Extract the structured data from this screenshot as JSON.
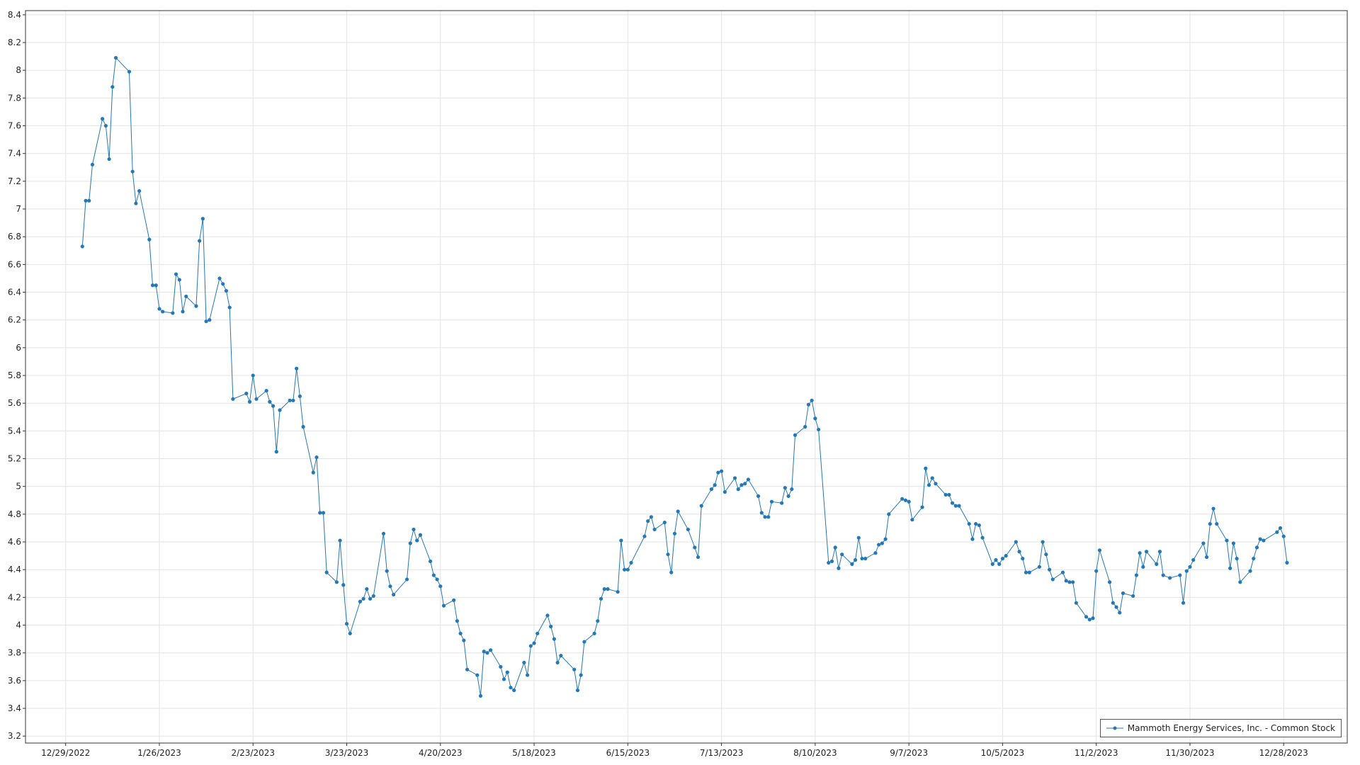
{
  "chart_data": {
    "type": "line",
    "x": [
      "1/3/2023",
      "1/4/2023",
      "1/5/2023",
      "1/6/2023",
      "1/9/2023",
      "1/10/2023",
      "1/11/2023",
      "1/12/2023",
      "1/13/2023",
      "1/17/2023",
      "1/18/2023",
      "1/19/2023",
      "1/20/2023",
      "1/23/2023",
      "1/24/2023",
      "1/25/2023",
      "1/26/2023",
      "1/27/2023",
      "1/30/2023",
      "1/31/2023",
      "2/1/2023",
      "2/2/2023",
      "2/3/2023",
      "2/6/2023",
      "2/7/2023",
      "2/8/2023",
      "2/9/2023",
      "2/10/2023",
      "2/13/2023",
      "2/14/2023",
      "2/15/2023",
      "2/16/2023",
      "2/17/2023",
      "2/21/2023",
      "2/22/2023",
      "2/23/2023",
      "2/24/2023",
      "2/27/2023",
      "2/28/2023",
      "3/1/2023",
      "3/2/2023",
      "3/3/2023",
      "3/6/2023",
      "3/7/2023",
      "3/8/2023",
      "3/9/2023",
      "3/10/2023",
      "3/13/2023",
      "3/14/2023",
      "3/15/2023",
      "3/16/2023",
      "3/17/2023",
      "3/20/2023",
      "3/21/2023",
      "3/22/2023",
      "3/23/2023",
      "3/24/2023",
      "3/27/2023",
      "3/28/2023",
      "3/29/2023",
      "3/30/2023",
      "3/31/2023",
      "4/3/2023",
      "4/4/2023",
      "4/5/2023",
      "4/6/2023",
      "4/10/2023",
      "4/11/2023",
      "4/12/2023",
      "4/13/2023",
      "4/14/2023",
      "4/17/2023",
      "4/18/2023",
      "4/19/2023",
      "4/20/2023",
      "4/21/2023",
      "4/24/2023",
      "4/25/2023",
      "4/26/2023",
      "4/27/2023",
      "4/28/2023",
      "5/1/2023",
      "5/2/2023",
      "5/3/2023",
      "5/4/2023",
      "5/5/2023",
      "5/8/2023",
      "5/9/2023",
      "5/10/2023",
      "5/11/2023",
      "5/12/2023",
      "5/15/2023",
      "5/16/2023",
      "5/17/2023",
      "5/18/2023",
      "5/19/2023",
      "5/22/2023",
      "5/23/2023",
      "5/24/2023",
      "5/25/2023",
      "5/26/2023",
      "5/30/2023",
      "5/31/2023",
      "6/1/2023",
      "6/2/2023",
      "6/5/2023",
      "6/6/2023",
      "6/7/2023",
      "6/8/2023",
      "6/9/2023",
      "6/12/2023",
      "6/13/2023",
      "6/14/2023",
      "6/15/2023",
      "6/16/2023",
      "6/20/2023",
      "6/21/2023",
      "6/22/2023",
      "6/23/2023",
      "6/26/2023",
      "6/27/2023",
      "6/28/2023",
      "6/29/2023",
      "6/30/2023",
      "7/3/2023",
      "7/5/2023",
      "7/6/2023",
      "7/7/2023",
      "7/10/2023",
      "7/11/2023",
      "7/12/2023",
      "7/13/2023",
      "7/14/2023",
      "7/17/2023",
      "7/18/2023",
      "7/19/2023",
      "7/20/2023",
      "7/21/2023",
      "7/24/2023",
      "7/25/2023",
      "7/26/2023",
      "7/27/2023",
      "7/28/2023",
      "7/31/2023",
      "8/1/2023",
      "8/2/2023",
      "8/3/2023",
      "8/4/2023",
      "8/7/2023",
      "8/8/2023",
      "8/9/2023",
      "8/10/2023",
      "8/11/2023",
      "8/14/2023",
      "8/15/2023",
      "8/16/2023",
      "8/17/2023",
      "8/18/2023",
      "8/21/2023",
      "8/22/2023",
      "8/23/2023",
      "8/24/2023",
      "8/25/2023",
      "8/28/2023",
      "8/29/2023",
      "8/30/2023",
      "8/31/2023",
      "9/1/2023",
      "9/5/2023",
      "9/6/2023",
      "9/7/2023",
      "9/8/2023",
      "9/11/2023",
      "9/12/2023",
      "9/13/2023",
      "9/14/2023",
      "9/15/2023",
      "9/18/2023",
      "9/19/2023",
      "9/20/2023",
      "9/21/2023",
      "9/22/2023",
      "9/25/2023",
      "9/26/2023",
      "9/27/2023",
      "9/28/2023",
      "9/29/2023",
      "10/2/2023",
      "10/3/2023",
      "10/4/2023",
      "10/5/2023",
      "10/6/2023",
      "10/9/2023",
      "10/10/2023",
      "10/11/2023",
      "10/12/2023",
      "10/13/2023",
      "10/16/2023",
      "10/17/2023",
      "10/18/2023",
      "10/19/2023",
      "10/20/2023",
      "10/23/2023",
      "10/24/2023",
      "10/25/2023",
      "10/26/2023",
      "10/27/2023",
      "10/30/2023",
      "10/31/2023",
      "11/1/2023",
      "11/2/2023",
      "11/3/2023",
      "11/6/2023",
      "11/7/2023",
      "11/8/2023",
      "11/9/2023",
      "11/10/2023",
      "11/13/2023",
      "11/14/2023",
      "11/15/2023",
      "11/16/2023",
      "11/17/2023",
      "11/20/2023",
      "11/21/2023",
      "11/22/2023",
      "11/24/2023",
      "11/27/2023",
      "11/28/2023",
      "11/29/2023",
      "11/30/2023",
      "12/1/2023",
      "12/4/2023",
      "12/5/2023",
      "12/6/2023",
      "12/7/2023",
      "12/8/2023",
      "12/11/2023",
      "12/12/2023",
      "12/13/2023",
      "12/14/2023",
      "12/15/2023",
      "12/18/2023",
      "12/19/2023",
      "12/20/2023",
      "12/21/2023",
      "12/22/2023",
      "12/26/2023",
      "12/27/2023",
      "12/28/2023",
      "12/29/2023"
    ],
    "series": [
      {
        "name": "Mammoth Energy Services, Inc. - Common Stock",
        "color": "#2378b5",
        "values": [
          6.73,
          7.06,
          7.06,
          7.32,
          7.65,
          7.6,
          7.36,
          7.88,
          8.09,
          7.99,
          7.27,
          7.04,
          7.13,
          6.78,
          6.45,
          6.45,
          6.28,
          6.26,
          6.25,
          6.53,
          6.49,
          6.26,
          6.37,
          6.3,
          6.77,
          6.93,
          6.19,
          6.2,
          6.5,
          6.46,
          6.41,
          6.29,
          5.63,
          5.67,
          5.61,
          5.8,
          5.63,
          5.69,
          5.61,
          5.58,
          5.25,
          5.55,
          5.62,
          5.62,
          5.85,
          5.65,
          5.43,
          5.1,
          5.21,
          4.81,
          4.81,
          4.38,
          4.31,
          4.61,
          4.29,
          4.01,
          3.94,
          4.17,
          4.19,
          4.26,
          4.19,
          4.21,
          4.66,
          4.39,
          4.28,
          4.22,
          4.33,
          4.59,
          4.69,
          4.61,
          4.65,
          4.46,
          4.36,
          4.33,
          4.28,
          4.14,
          4.18,
          4.03,
          3.94,
          3.89,
          3.68,
          3.64,
          3.49,
          3.81,
          3.8,
          3.82,
          3.7,
          3.61,
          3.66,
          3.55,
          3.53,
          3.73,
          3.64,
          3.85,
          3.87,
          3.94,
          4.07,
          3.99,
          3.9,
          3.73,
          3.78,
          3.68,
          3.53,
          3.64,
          3.88,
          3.94,
          4.03,
          4.19,
          4.26,
          4.26,
          4.24,
          4.61,
          4.4,
          4.4,
          4.45,
          4.64,
          4.75,
          4.78,
          4.69,
          4.74,
          4.51,
          4.38,
          4.66,
          4.82,
          4.69,
          4.56,
          4.49,
          4.86,
          4.98,
          5.01,
          5.1,
          5.11,
          4.96,
          5.06,
          4.98,
          5.01,
          5.02,
          5.05,
          4.93,
          4.81,
          4.78,
          4.78,
          4.89,
          4.88,
          4.99,
          4.93,
          4.98,
          5.37,
          5.43,
          5.59,
          5.62,
          5.49,
          5.41,
          4.45,
          4.46,
          4.56,
          4.41,
          4.51,
          4.44,
          4.47,
          4.63,
          4.48,
          4.48,
          4.52,
          4.58,
          4.59,
          4.62,
          4.8,
          4.91,
          4.9,
          4.89,
          4.76,
          4.85,
          5.13,
          5.01,
          5.06,
          5.02,
          4.94,
          4.94,
          4.88,
          4.86,
          4.86,
          4.73,
          4.62,
          4.73,
          4.72,
          4.63,
          4.44,
          4.47,
          4.44,
          4.48,
          4.5,
          4.6,
          4.53,
          4.48,
          4.38,
          4.38,
          4.42,
          4.6,
          4.51,
          4.4,
          4.33,
          4.38,
          4.32,
          4.31,
          4.31,
          4.16,
          4.06,
          4.04,
          4.05,
          4.39,
          4.54,
          4.31,
          4.16,
          4.13,
          4.09,
          4.23,
          4.21,
          4.36,
          4.52,
          4.42,
          4.53,
          4.44,
          4.53,
          4.36,
          4.34,
          4.36,
          4.16,
          4.39,
          4.42,
          4.47,
          4.59,
          4.49,
          4.73,
          4.84,
          4.73,
          4.61,
          4.41,
          4.59,
          4.48,
          4.31,
          4.39,
          4.48,
          4.56,
          4.62,
          4.61,
          4.67,
          4.7,
          4.64,
          4.45
        ]
      }
    ],
    "xlim": [
      "12/17/2022",
      "1/16/2024"
    ],
    "xticks": [
      "12/29/2022",
      "1/26/2023",
      "2/23/2023",
      "3/23/2023",
      "4/20/2023",
      "5/18/2023",
      "6/15/2023",
      "7/13/2023",
      "8/10/2023",
      "9/7/2023",
      "10/5/2023",
      "11/2/2023",
      "11/30/2023",
      "12/28/2023"
    ],
    "ylim": [
      3.15,
      8.43
    ],
    "yticks": [
      3.2,
      3.4,
      3.6,
      3.8,
      4,
      4.2,
      4.4,
      4.6,
      4.8,
      5,
      5.2,
      5.4,
      5.6,
      5.8,
      6,
      6.2,
      6.4,
      6.6,
      6.8,
      7,
      7.2,
      7.4,
      7.6,
      7.8,
      8,
      8.2,
      8.4
    ],
    "grid": true,
    "legend": "bottom-right"
  }
}
